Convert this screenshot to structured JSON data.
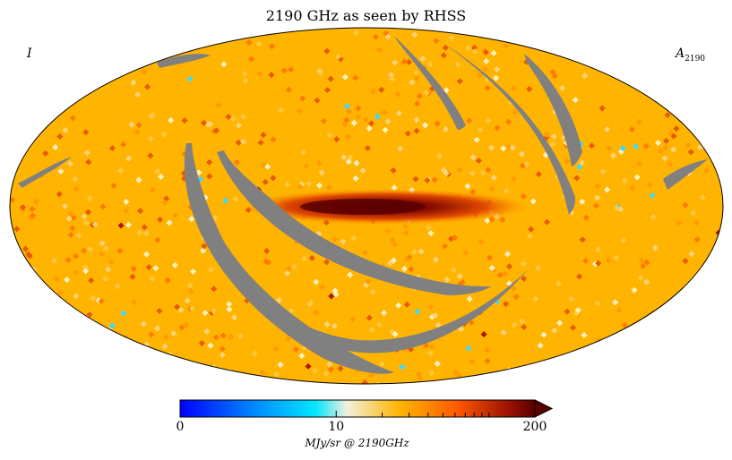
{
  "chart_data": {
    "type": "heatmap",
    "projection": "mollweide",
    "title": "2190 GHz as seen by RHSS",
    "stokes_label": "I",
    "component_label": "A",
    "component_sub": "2190",
    "colorbar": {
      "ticks": [
        "0",
        "10",
        "200"
      ],
      "tick_values": [
        0,
        10,
        200
      ],
      "scale": "symlog",
      "extend": "max",
      "units": "MJy/sr @ 2190GHz",
      "colors": [
        "#0000ff",
        "#00e0ff",
        "#f2f0dc",
        "#ffb400",
        "#ff5a00",
        "#8c0f00",
        "#5a0000"
      ]
    },
    "background_level": 35,
    "galactic_plane_peak": 200,
    "masked_color": "#808080",
    "masked_regions": "unobserved scan-strip gaps shown in grey"
  }
}
